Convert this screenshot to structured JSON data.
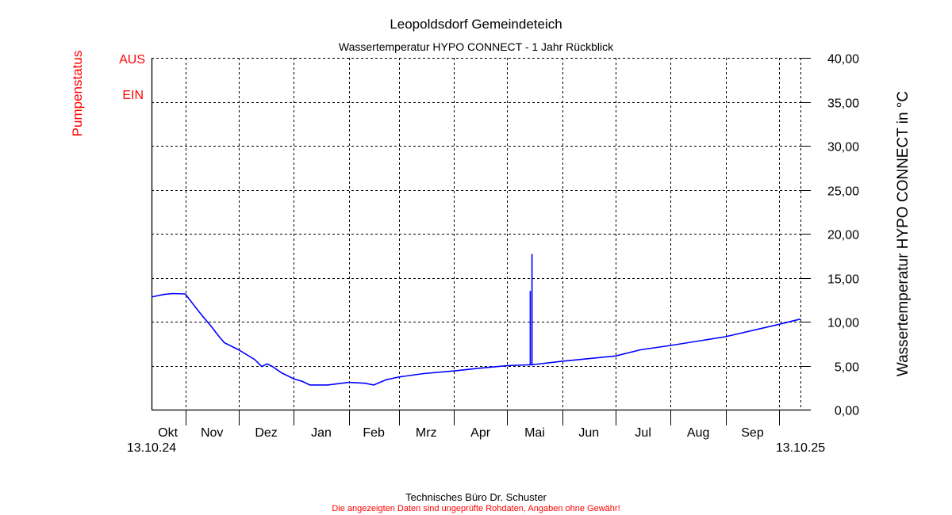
{
  "chart_data": {
    "type": "line",
    "title": "Leopoldsdorf Gemeindeteich",
    "subtitle": "Wassertemperatur HYPO CONNECT - 1 Jahr Rückblick",
    "ylabel": "Wassertemperatur HYPO CONNECT in °C",
    "ylabel_left": "Pumpenstatus",
    "left_axis_labels": [
      "AUS",
      "EIN"
    ],
    "ylim": [
      0,
      40
    ],
    "y_ticks": [
      "0,00",
      "5,00",
      "10,00",
      "15,00",
      "20,00",
      "25,00",
      "30,00",
      "35,00",
      "40,00"
    ],
    "xlim": [
      "2024-10-13",
      "2025-10-13"
    ],
    "x_start_label": "13.10.24",
    "x_end_label": "13.10.25",
    "month_ticks": [
      "2024-11-01",
      "2024-12-01",
      "2025-01-01",
      "2025-02-01",
      "2025-03-01",
      "2025-04-01",
      "2025-05-01",
      "2025-06-01",
      "2025-07-01",
      "2025-08-01",
      "2025-09-01",
      "2025-10-01"
    ],
    "month_labels": [
      "Okt",
      "Nov",
      "Dez",
      "Jan",
      "Feb",
      "Mrz",
      "Apr",
      "Mai",
      "Jun",
      "Jul",
      "Aug",
      "Sep"
    ],
    "grid": true,
    "series": [
      {
        "color": "#0000ff",
        "points": [
          [
            "2024-10-13",
            12.8
          ],
          [
            "2024-10-20",
            13.1
          ],
          [
            "2024-10-25",
            13.2
          ],
          [
            "2024-11-01",
            13.15
          ],
          [
            "2024-11-05",
            12.1
          ],
          [
            "2024-11-10",
            10.8
          ],
          [
            "2024-11-15",
            9.6
          ],
          [
            "2024-11-20",
            8.3
          ],
          [
            "2024-11-23",
            7.6
          ],
          [
            "2024-12-01",
            6.8
          ],
          [
            "2024-12-10",
            5.7
          ],
          [
            "2024-12-14",
            4.9
          ],
          [
            "2024-12-17",
            5.2
          ],
          [
            "2024-12-20",
            4.9
          ],
          [
            "2024-12-25",
            4.2
          ],
          [
            "2025-01-01",
            3.5
          ],
          [
            "2025-01-06",
            3.2
          ],
          [
            "2025-01-10",
            2.8
          ],
          [
            "2025-01-20",
            2.8
          ],
          [
            "2025-02-01",
            3.1
          ],
          [
            "2025-02-10",
            3.0
          ],
          [
            "2025-02-15",
            2.8
          ],
          [
            "2025-02-22",
            3.4
          ],
          [
            "2025-03-01",
            3.7
          ],
          [
            "2025-03-15",
            4.1
          ],
          [
            "2025-04-01",
            4.4
          ],
          [
            "2025-04-15",
            4.7
          ],
          [
            "2025-05-01",
            5.0
          ],
          [
            "2025-05-14",
            5.1
          ],
          [
            "2025-05-14",
            13.5
          ],
          [
            "2025-05-14",
            5.1
          ],
          [
            "2025-05-15",
            5.1
          ],
          [
            "2025-05-15",
            17.7
          ],
          [
            "2025-05-15",
            5.1
          ],
          [
            "2025-06-01",
            5.5
          ],
          [
            "2025-07-01",
            6.1
          ],
          [
            "2025-07-15",
            6.8
          ],
          [
            "2025-08-01",
            7.3
          ],
          [
            "2025-09-01",
            8.3
          ],
          [
            "2025-10-01",
            9.7
          ],
          [
            "2025-10-13",
            10.3
          ]
        ]
      }
    ]
  },
  "colors": {
    "pump": "#ff0000",
    "series": "#0000ff",
    "footer_note": "#ff0000"
  },
  "footer": {
    "company": "Technisches Büro Dr. Schuster",
    "disclaimer": "Die angezeigten Daten sind ungeprüfte Rohdaten, Angaben ohne Gewähr!"
  }
}
